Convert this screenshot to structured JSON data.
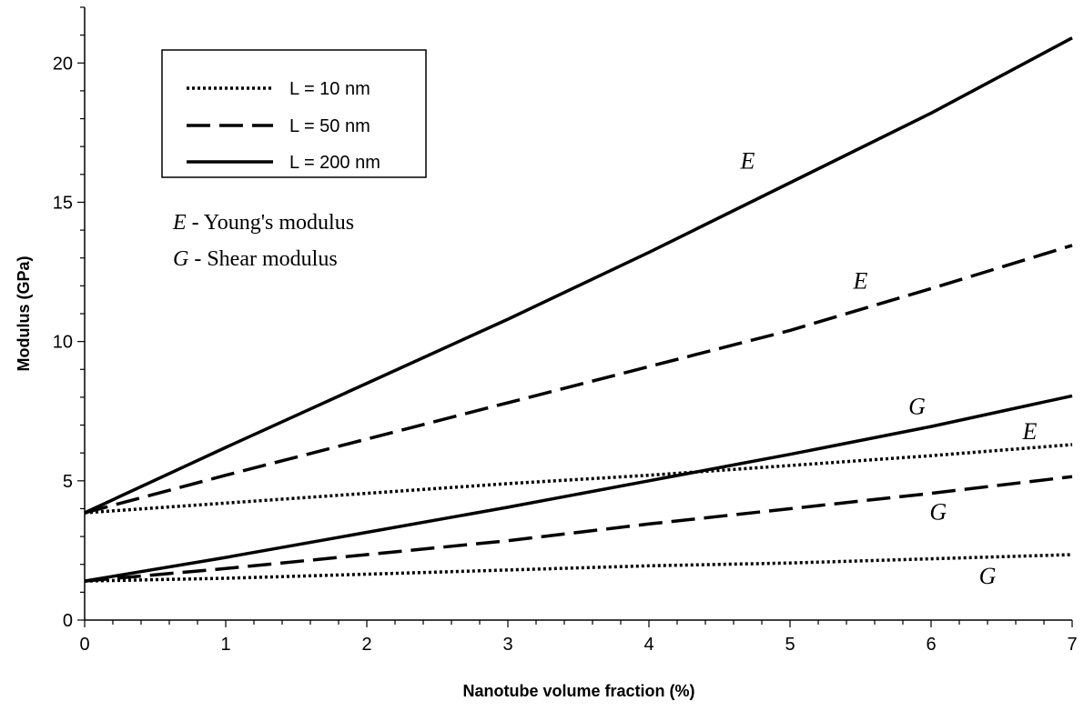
{
  "chart_data": {
    "type": "line",
    "xlabel": "Nanotube volume fraction (%)",
    "ylabel": "Modulus (GPa)",
    "xlim": [
      0,
      7
    ],
    "ylim": [
      0,
      22
    ],
    "x_ticks": [
      "0",
      "1",
      "2",
      "3",
      "4",
      "5",
      "6",
      "7"
    ],
    "y_ticks": [
      "0",
      "5",
      "10",
      "15",
      "20"
    ],
    "grid": false,
    "legend_position": "top-left",
    "legend": [
      {
        "label": "L = 10 nm",
        "style": "dotted"
      },
      {
        "label": "L = 50 nm",
        "style": "dashed"
      },
      {
        "label": "L = 200 nm",
        "style": "solid"
      }
    ],
    "notes": [
      {
        "symbol": "E",
        "text": " - Young's modulus"
      },
      {
        "symbol": "G",
        "text": " - Shear modulus"
      }
    ],
    "x": [
      0,
      1,
      2,
      3,
      4,
      5,
      6,
      7
    ],
    "series": [
      {
        "name": "L = 200 nm",
        "quantity": "E",
        "style": "solid",
        "values": [
          3.85,
          6.2,
          8.5,
          10.8,
          13.2,
          15.7,
          18.2,
          20.9
        ]
      },
      {
        "name": "L = 50 nm",
        "quantity": "E",
        "style": "dashed",
        "values": [
          3.85,
          5.2,
          6.5,
          7.8,
          9.1,
          10.4,
          11.9,
          13.45
        ]
      },
      {
        "name": "L = 10 nm",
        "quantity": "E",
        "style": "dotted",
        "values": [
          3.85,
          4.2,
          4.55,
          4.9,
          5.2,
          5.55,
          5.9,
          6.3
        ]
      },
      {
        "name": "L = 200 nm",
        "quantity": "G",
        "style": "solid",
        "values": [
          1.4,
          2.25,
          3.15,
          4.05,
          5.0,
          5.95,
          6.95,
          8.05
        ]
      },
      {
        "name": "L = 50 nm",
        "quantity": "G",
        "style": "dashed",
        "values": [
          1.4,
          1.85,
          2.35,
          2.85,
          3.45,
          4.0,
          4.55,
          5.15
        ]
      },
      {
        "name": "L = 10 nm",
        "quantity": "G",
        "style": "dotted",
        "values": [
          1.4,
          1.5,
          1.65,
          1.8,
          1.95,
          2.05,
          2.2,
          2.35
        ]
      }
    ],
    "annotations": [
      {
        "text": "E",
        "x": 4.7,
        "y": 16.2
      },
      {
        "text": "E",
        "x": 5.5,
        "y": 11.9
      },
      {
        "text": "G",
        "x": 5.9,
        "y": 7.4
      },
      {
        "text": "E",
        "x": 6.7,
        "y": 6.5
      },
      {
        "text": "G",
        "x": 6.05,
        "y": 3.6
      },
      {
        "text": "G",
        "x": 6.4,
        "y": 1.3
      }
    ]
  }
}
